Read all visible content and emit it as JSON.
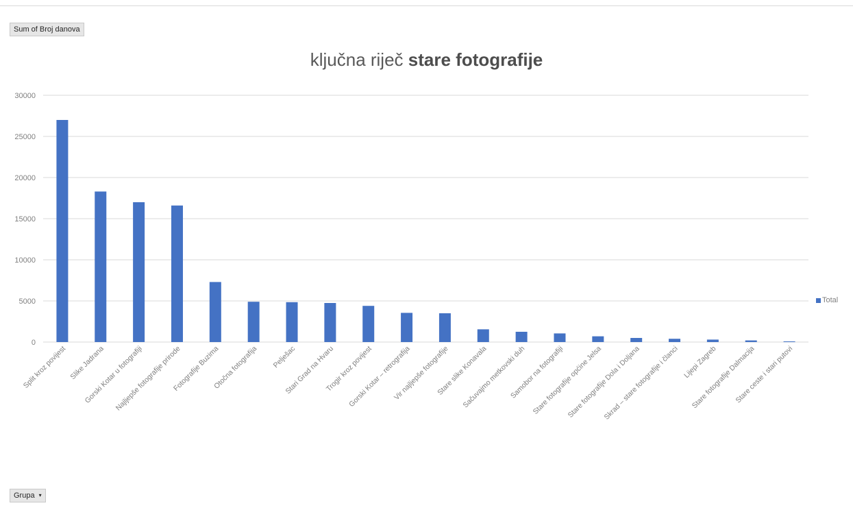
{
  "pivot": {
    "value_field_label": "Sum of Broj danova",
    "filter_field_label": "Grupa",
    "filter_dropdown_icon": "▾"
  },
  "chart_title": {
    "normal": "ključna riječ ",
    "bold": "stare fotografije"
  },
  "legend": {
    "label": "Total"
  },
  "colors": {
    "bar": "#4472c4",
    "grid": "#d9d9d9"
  },
  "chart_data": {
    "type": "bar",
    "title": "ključna riječ stare fotografije",
    "xlabel": "",
    "ylabel": "",
    "ylim": [
      0,
      30000
    ],
    "yticks": [
      0,
      5000,
      10000,
      15000,
      20000,
      25000,
      30000
    ],
    "grid": true,
    "legend_position": "right",
    "categories": [
      "Split kroz povijest",
      "Slike Jadrana",
      "Gorski Kotar u fotografiji",
      "Najljepše fotografije prirode",
      "Fotografije Buzima",
      "Otočna fotografija",
      "Pelješac",
      "Stari Grad na Hvaru",
      "Trogir kroz povijest",
      "Gorski Kotar – retrografija",
      "Vir najljepše fotografije",
      "Stare slike Konavala",
      "Sačuvajmo metkovski duh",
      "Samobor na fotografiji",
      "Stare fotografije općine Jelsa",
      "Stare fotografije Dola i Doljana",
      "Skrad – stare fotografije i članci",
      "Lijepi Zagreb",
      "Stare fotografije Dalmacija",
      "Stare ceste i stari putovi"
    ],
    "series": [
      {
        "name": "Total",
        "values": [
          27000,
          18300,
          17000,
          16600,
          7300,
          4900,
          4850,
          4750,
          4400,
          3550,
          3500,
          1550,
          1250,
          1050,
          700,
          500,
          400,
          300,
          200,
          80
        ]
      }
    ]
  }
}
